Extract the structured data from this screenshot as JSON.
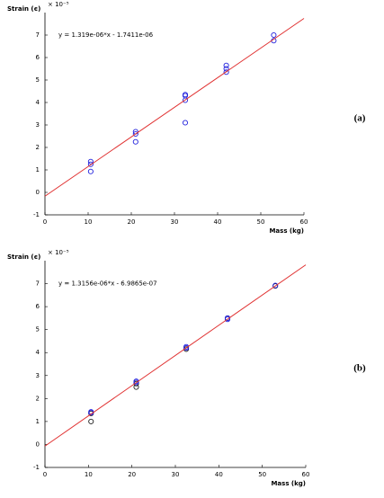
{
  "chart_data": [
    {
      "type": "scatter",
      "panel_label": "(a)",
      "ylabel": "Strain (ϵ)",
      "xlabel": "Mass (kg)",
      "multiplier": "× 10⁻⁵",
      "annotation": "y = 1.319e-06*x - 1.7411e-06",
      "xlim": [
        0,
        60
      ],
      "xticks": [
        0,
        10,
        20,
        30,
        40,
        50,
        60
      ],
      "ylim": [
        -1,
        8
      ],
      "yticks": [
        -1,
        0,
        1,
        2,
        3,
        4,
        5,
        6,
        7
      ],
      "series": [
        {
          "mode": "markers",
          "color": "#2222dd",
          "x": [
            10.6,
            10.6,
            10.6,
            21,
            21,
            21,
            32.5,
            32.5,
            32.5,
            32.5,
            42,
            42,
            42,
            53,
            53
          ],
          "values": [
            1.37,
            1.25,
            0.93,
            2.7,
            2.6,
            2.25,
            4.35,
            4.3,
            4.1,
            3.1,
            5.65,
            5.5,
            5.35,
            7.0,
            6.75
          ]
        },
        {
          "mode": "line",
          "color": "#e03030",
          "x": [
            0,
            60
          ],
          "values": [
            -0.17,
            7.74
          ]
        }
      ]
    },
    {
      "type": "scatter",
      "panel_label": "(b)",
      "ylabel": "Strain (ϵ)",
      "xlabel": "Mass (kg)",
      "multiplier": "× 10⁻⁵",
      "annotation": "y = 1.3156e-06*x - 6.9865e-07",
      "xlim": [
        0,
        60
      ],
      "xticks": [
        0,
        10,
        20,
        30,
        40,
        50,
        60
      ],
      "ylim": [
        -1,
        8
      ],
      "yticks": [
        -1,
        0,
        1,
        2,
        3,
        4,
        5,
        6,
        7
      ],
      "series": [
        {
          "mode": "markers",
          "color": "#222222",
          "x": [
            10.6,
            10.6,
            21,
            21,
            32.5,
            42,
            53
          ],
          "values": [
            1.0,
            1.35,
            2.5,
            2.65,
            4.15,
            5.5,
            6.9
          ]
        },
        {
          "mode": "markers",
          "color": "#2222dd",
          "x": [
            10.6,
            10.6,
            21,
            21,
            32.5,
            32.5,
            42,
            42,
            53
          ],
          "values": [
            1.42,
            1.38,
            2.75,
            2.7,
            4.25,
            4.2,
            5.5,
            5.45,
            6.92
          ]
        },
        {
          "mode": "line",
          "color": "#e03030",
          "x": [
            0,
            60
          ],
          "values": [
            -0.07,
            7.82
          ]
        }
      ]
    }
  ]
}
